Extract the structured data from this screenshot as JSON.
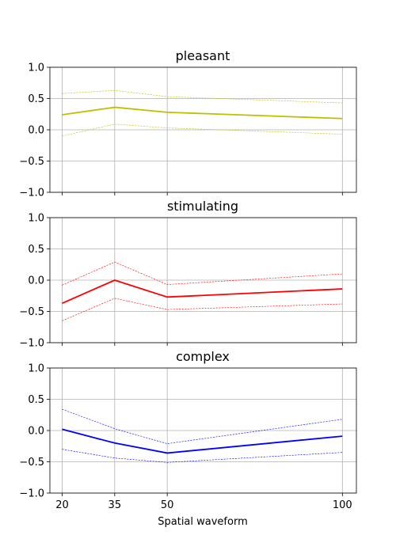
{
  "chart_data": [
    {
      "type": "line",
      "title": "pleasant",
      "x": [
        20,
        35,
        50,
        100
      ],
      "xlim": [
        16.5,
        104
      ],
      "ylim": [
        -1.0,
        1.0
      ],
      "yticks": [
        "1.0",
        "0.5",
        "0.0",
        "−0.5",
        "−1.0"
      ],
      "ytick_values": [
        1.0,
        0.5,
        0.0,
        -0.5,
        -1.0
      ],
      "xticks": [],
      "grid": true,
      "color": "#bfbf00",
      "series": [
        {
          "role": "mean",
          "values": [
            0.24,
            0.36,
            0.28,
            0.18
          ]
        },
        {
          "role": "upper",
          "values": [
            0.58,
            0.63,
            0.53,
            0.43
          ]
        },
        {
          "role": "lower",
          "values": [
            -0.1,
            0.09,
            0.03,
            -0.07
          ]
        }
      ]
    },
    {
      "type": "line",
      "title": "stimulating",
      "x": [
        20,
        35,
        50,
        100
      ],
      "xlim": [
        16.5,
        104
      ],
      "ylim": [
        -1.0,
        1.0
      ],
      "yticks": [
        "1.0",
        "0.5",
        "0.0",
        "−0.5",
        "−1.0"
      ],
      "ytick_values": [
        1.0,
        0.5,
        0.0,
        -0.5,
        -1.0
      ],
      "xticks": [],
      "grid": true,
      "color": "#ff0000",
      "series": [
        {
          "role": "mean",
          "values": [
            -0.37,
            0.0,
            -0.27,
            -0.14
          ]
        },
        {
          "role": "upper",
          "values": [
            -0.08,
            0.29,
            -0.07,
            0.1
          ]
        },
        {
          "role": "lower",
          "values": [
            -0.65,
            -0.29,
            -0.47,
            -0.38
          ]
        }
      ]
    },
    {
      "type": "line",
      "title": "complex",
      "x": [
        20,
        35,
        50,
        100
      ],
      "xlim": [
        16.5,
        104
      ],
      "ylim": [
        -1.0,
        1.0
      ],
      "yticks": [
        "1.0",
        "0.5",
        "0.0",
        "−0.5",
        "−1.0"
      ],
      "ytick_values": [
        1.0,
        0.5,
        0.0,
        -0.5,
        -1.0
      ],
      "xticks": [
        "20",
        "35",
        "50",
        "100"
      ],
      "xlabel": "Spatial waveform",
      "grid": true,
      "color": "#0000ff",
      "series": [
        {
          "role": "mean",
          "values": [
            0.02,
            -0.2,
            -0.36,
            -0.09
          ]
        },
        {
          "role": "upper",
          "values": [
            0.34,
            0.03,
            -0.21,
            0.18
          ]
        },
        {
          "role": "lower",
          "values": [
            -0.3,
            -0.44,
            -0.51,
            -0.35
          ]
        }
      ]
    }
  ]
}
